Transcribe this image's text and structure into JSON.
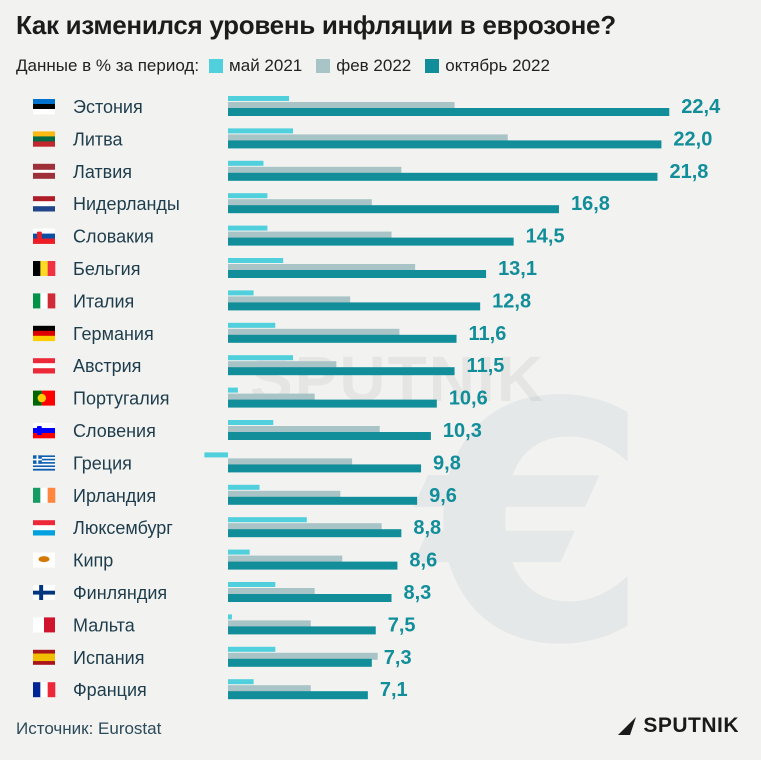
{
  "title": "Как изменился уровень инфляции в еврозоне?",
  "legend": {
    "lead": "Данные в % за период:",
    "items": [
      {
        "label": "май 2021",
        "color": "#4fd0dc"
      },
      {
        "label": "фев 2022",
        "color": "#a8c4c6"
      },
      {
        "label": "октябрь 2022",
        "color": "#128e9a"
      }
    ]
  },
  "source": "Источник: Eurostat",
  "logo": "SPUTNIK",
  "watermark": "SPUTNIK",
  "chart_data": {
    "type": "bar",
    "orientation": "horizontal",
    "categories": [
      "Эстония",
      "Литва",
      "Латвия",
      "Нидерланды",
      "Словакия",
      "Бельгия",
      "Италия",
      "Германия",
      "Австрия",
      "Португалия",
      "Словения",
      "Греция",
      "Ирландия",
      "Люксембург",
      "Кипр",
      "Финляндия",
      "Мальта",
      "Испания",
      "Франция"
    ],
    "flags": [
      "estonia",
      "lithuania",
      "latvia",
      "netherlands",
      "slovakia",
      "belgium",
      "italy",
      "germany",
      "austria",
      "portugal",
      "slovenia",
      "greece",
      "ireland",
      "luxembourg",
      "cyprus",
      "finland",
      "malta",
      "spain",
      "france"
    ],
    "series": [
      {
        "name": "май 2021",
        "values": [
          3.1,
          3.3,
          1.8,
          2.0,
          2.0,
          2.8,
          1.3,
          2.4,
          3.3,
          0.5,
          2.3,
          -1.2,
          1.6,
          4.0,
          1.1,
          2.4,
          0.2,
          2.4,
          1.3
        ]
      },
      {
        "name": "фев 2022",
        "values": [
          11.5,
          14.2,
          8.8,
          7.3,
          8.3,
          9.5,
          6.2,
          8.7,
          5.5,
          4.4,
          7.7,
          6.3,
          5.7,
          7.8,
          5.8,
          4.4,
          4.2,
          7.6,
          4.2
        ]
      },
      {
        "name": "октябрь 2022",
        "values": [
          22.4,
          22.0,
          21.8,
          16.8,
          14.5,
          13.1,
          12.8,
          11.6,
          11.5,
          10.6,
          10.3,
          9.8,
          9.6,
          8.8,
          8.6,
          8.3,
          7.5,
          7.3,
          7.1
        ]
      }
    ],
    "value_labels": [
      "22,4",
      "22,0",
      "21,8",
      "16,8",
      "14,5",
      "13,1",
      "12,8",
      "11,6",
      "11,5",
      "10,6",
      "10,3",
      "9,8",
      "9,6",
      "8,8",
      "8,6",
      "8,3",
      "7,5",
      "7,3",
      "7,1"
    ]
  }
}
